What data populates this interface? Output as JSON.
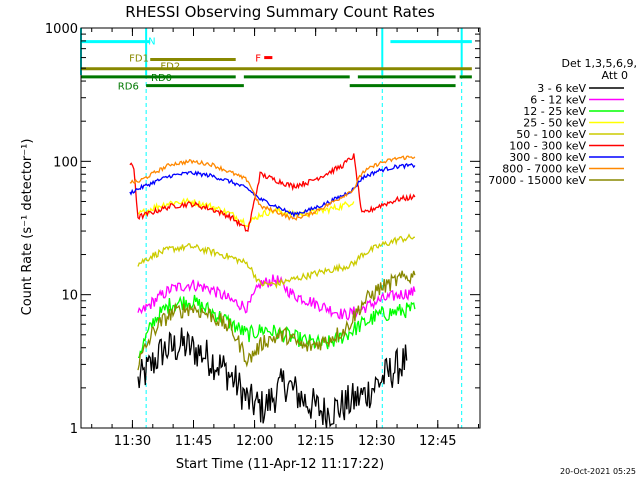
{
  "chart_data": {
    "type": "line",
    "title": "RHESSI Observing Summary Count Rates",
    "xlabel": "Start Time (11-Apr-12 11:17:22)",
    "ylabel": "Count Rate (s⁻¹ detector⁻¹)",
    "yscale": "log",
    "ylim": [
      1,
      1000
    ],
    "xlim_minutes_after_start": [
      0,
      98
    ],
    "x_ticks": [
      {
        "label": "11:30",
        "minutes": 12.63
      },
      {
        "label": "11:45",
        "minutes": 27.63
      },
      {
        "label": "12:00",
        "minutes": 42.63
      },
      {
        "label": "12:15",
        "minutes": 57.63
      },
      {
        "label": "12:30",
        "minutes": 72.63
      },
      {
        "label": "12:45",
        "minutes": 87.63
      }
    ],
    "y_ticks": [
      {
        "label": "1",
        "value": 1
      },
      {
        "label": "10",
        "value": 10
      },
      {
        "label": "100",
        "value": 100
      },
      {
        "label": "1000",
        "value": 1000
      }
    ],
    "legend": {
      "placement": "right",
      "header": [
        "Det 1,3,5,6,9,",
        "Att 0"
      ]
    },
    "series": [
      {
        "name": "3 - 6 keV",
        "color": "#000000",
        "points": [
          [
            14,
            2.2
          ],
          [
            20,
            3.8
          ],
          [
            25,
            4.2
          ],
          [
            30,
            3.6
          ],
          [
            35,
            2.8
          ],
          [
            38,
            2.2
          ],
          [
            41,
            1.6
          ],
          [
            45,
            1.4
          ],
          [
            50,
            2.2
          ],
          [
            55,
            1.6
          ],
          [
            60,
            1.3
          ],
          [
            65,
            1.5
          ],
          [
            70,
            1.8
          ],
          [
            75,
            2.5
          ],
          [
            80,
            3.2
          ]
        ]
      },
      {
        "name": "6 - 12 keV",
        "color": "#ff00ff",
        "points": [
          [
            14,
            7.0
          ],
          [
            18,
            9.0
          ],
          [
            22,
            11.0
          ],
          [
            27,
            12.0
          ],
          [
            32,
            11.0
          ],
          [
            37,
            9.0
          ],
          [
            41,
            8.0
          ],
          [
            44,
            12.0
          ],
          [
            48,
            13.0
          ],
          [
            52,
            10.0
          ],
          [
            56,
            9.0
          ],
          [
            60,
            8.0
          ],
          [
            65,
            7.0
          ],
          [
            69,
            7.8
          ],
          [
            73,
            9.0
          ],
          [
            78,
            10.0
          ],
          [
            82,
            10.5
          ]
        ]
      },
      {
        "name": "12 - 25 keV",
        "color": "#00ff00",
        "points": [
          [
            14,
            3.5
          ],
          [
            18,
            6.5
          ],
          [
            22,
            8.5
          ],
          [
            27,
            9.0
          ],
          [
            32,
            7.5
          ],
          [
            37,
            6.0
          ],
          [
            41,
            5.0
          ],
          [
            45,
            5.5
          ],
          [
            50,
            5.0
          ],
          [
            55,
            4.5
          ],
          [
            60,
            4.2
          ],
          [
            65,
            5.0
          ],
          [
            69,
            6.0
          ],
          [
            73,
            7.0
          ],
          [
            78,
            7.5
          ],
          [
            82,
            7.8
          ]
        ]
      },
      {
        "name": "25 - 50 keV",
        "color": "#ffff00",
        "points": [
          [
            14,
            40
          ],
          [
            18,
            45
          ],
          [
            22,
            49
          ],
          [
            27,
            50
          ],
          [
            32,
            46
          ],
          [
            37,
            40
          ],
          [
            41,
            34
          ],
          [
            44,
            40
          ],
          [
            48,
            43
          ],
          [
            52,
            40
          ],
          [
            56,
            41
          ],
          [
            60,
            43
          ],
          [
            64,
            46
          ],
          [
            67,
            50
          ]
        ]
      },
      {
        "name": "50 - 100 keV",
        "color": "#cccc00",
        "points": [
          [
            14,
            17
          ],
          [
            18,
            20
          ],
          [
            22,
            22
          ],
          [
            27,
            23
          ],
          [
            32,
            21
          ],
          [
            37,
            19
          ],
          [
            41,
            17
          ],
          [
            44,
            12
          ],
          [
            48,
            12
          ],
          [
            52,
            13
          ],
          [
            56,
            14
          ],
          [
            60,
            15
          ],
          [
            64,
            16
          ],
          [
            67,
            17
          ],
          [
            69,
            20
          ],
          [
            73,
            23
          ],
          [
            78,
            26
          ],
          [
            82,
            27
          ]
        ]
      },
      {
        "name": "100 - 300 keV",
        "color": "#ff0000",
        "points": [
          [
            12,
            95
          ],
          [
            13,
            88
          ],
          [
            14,
            38
          ],
          [
            18,
            42
          ],
          [
            22,
            46
          ],
          [
            27,
            48
          ],
          [
            32,
            44
          ],
          [
            37,
            38
          ],
          [
            41,
            30
          ],
          [
            44,
            80
          ],
          [
            48,
            72
          ],
          [
            52,
            65
          ],
          [
            56,
            70
          ],
          [
            60,
            80
          ],
          [
            64,
            92
          ],
          [
            67,
            110
          ],
          [
            69,
            40
          ],
          [
            73,
            46
          ],
          [
            78,
            52
          ],
          [
            82,
            54
          ]
        ]
      },
      {
        "name": "300 - 800 keV",
        "color": "#0000ff",
        "points": [
          [
            12,
            58
          ],
          [
            14,
            62
          ],
          [
            18,
            70
          ],
          [
            22,
            78
          ],
          [
            27,
            82
          ],
          [
            32,
            78
          ],
          [
            37,
            70
          ],
          [
            41,
            62
          ],
          [
            44,
            52
          ],
          [
            48,
            46
          ],
          [
            52,
            40
          ],
          [
            56,
            43
          ],
          [
            60,
            48
          ],
          [
            64,
            55
          ],
          [
            67,
            62
          ],
          [
            69,
            75
          ],
          [
            73,
            85
          ],
          [
            78,
            92
          ],
          [
            82,
            93
          ]
        ]
      },
      {
        "name": "800 - 7000 keV",
        "color": "#ff8800",
        "points": [
          [
            12,
            70
          ],
          [
            14,
            70
          ],
          [
            18,
            82
          ],
          [
            22,
            95
          ],
          [
            27,
            100
          ],
          [
            32,
            95
          ],
          [
            37,
            82
          ],
          [
            41,
            72
          ],
          [
            44,
            46
          ],
          [
            48,
            42
          ],
          [
            52,
            37
          ],
          [
            56,
            40
          ],
          [
            60,
            46
          ],
          [
            64,
            54
          ],
          [
            67,
            62
          ],
          [
            69,
            82
          ],
          [
            73,
            96
          ],
          [
            78,
            106
          ],
          [
            82,
            108
          ]
        ]
      },
      {
        "name": "7000 - 15000 keV",
        "color": "#888800",
        "points": [
          [
            14,
            3.0
          ],
          [
            18,
            5.5
          ],
          [
            22,
            7.2
          ],
          [
            27,
            8.0
          ],
          [
            32,
            7.0
          ],
          [
            37,
            5.5
          ],
          [
            41,
            3.2
          ],
          [
            45,
            4.5
          ],
          [
            50,
            5.0
          ],
          [
            55,
            4.0
          ],
          [
            60,
            4.5
          ],
          [
            65,
            5.5
          ],
          [
            69,
            8.5
          ],
          [
            73,
            11.0
          ],
          [
            78,
            13.0
          ],
          [
            82,
            14.0
          ]
        ]
      }
    ],
    "cyan_vlines_minutes": [
      0,
      16,
      74,
      93.5
    ],
    "status_bars": [
      {
        "label": "N",
        "color": "#00ffff",
        "value": 790,
        "segments": [
          [
            0,
            17
          ],
          [
            76,
            96
          ]
        ]
      },
      {
        "label": "F",
        "color": "#ff0000",
        "value": 600,
        "segments": [
          [
            45,
            47
          ]
        ]
      },
      {
        "label": "FD1",
        "color": "#888800",
        "value": 580,
        "segments": [
          [
            17,
            38
          ]
        ]
      },
      {
        "label": "FD2",
        "color": "#888800",
        "value": 495,
        "segments": [
          [
            0,
            96
          ]
        ]
      },
      {
        "label": "RD0",
        "color": "#007700",
        "value": 430,
        "segments": [
          [
            0,
            38
          ],
          [
            40,
            66
          ],
          [
            68,
            92
          ],
          [
            93,
            96
          ]
        ]
      },
      {
        "label": "RD6",
        "color": "#007700",
        "value": 370,
        "segments": [
          [
            16,
            40
          ],
          [
            66,
            92
          ]
        ]
      }
    ]
  },
  "footer": {
    "timestamp": "20-Oct-2021 05:25"
  }
}
